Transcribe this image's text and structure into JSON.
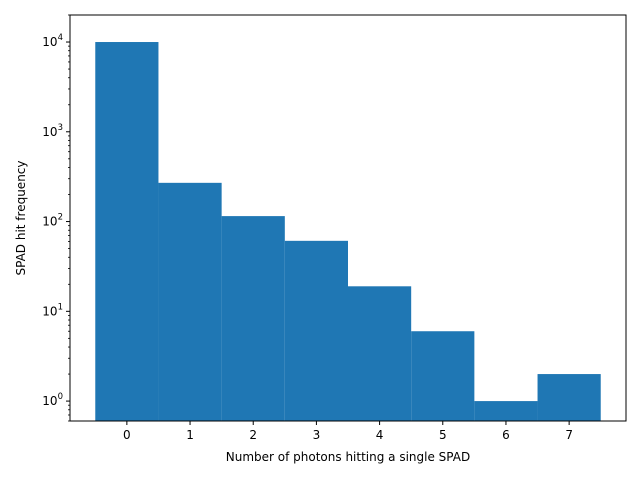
{
  "chart_data": {
    "type": "bar",
    "categories": [
      "0",
      "1",
      "2",
      "3",
      "4",
      "5",
      "6",
      "7"
    ],
    "values": [
      10000,
      270,
      115,
      61,
      19,
      6,
      1,
      2
    ],
    "title": "",
    "xlabel": "Number of photons hitting a single SPAD",
    "ylabel": "SPAD hit frequency",
    "yscale": "log",
    "ylim": [
      0.6,
      20000
    ],
    "xlim": [
      -0.9,
      7.9
    ],
    "bin_width": 1,
    "x_ticks": [
      "0",
      "1",
      "2",
      "3",
      "4",
      "5",
      "6",
      "7"
    ],
    "y_ticks": [
      {
        "base": "10",
        "exponent": "0"
      },
      {
        "base": "10",
        "exponent": "1"
      },
      {
        "base": "10",
        "exponent": "2"
      },
      {
        "base": "10",
        "exponent": "3"
      },
      {
        "base": "10",
        "exponent": "4"
      }
    ],
    "bar_color": "#1f77b4",
    "grid": false,
    "legend": "none"
  }
}
